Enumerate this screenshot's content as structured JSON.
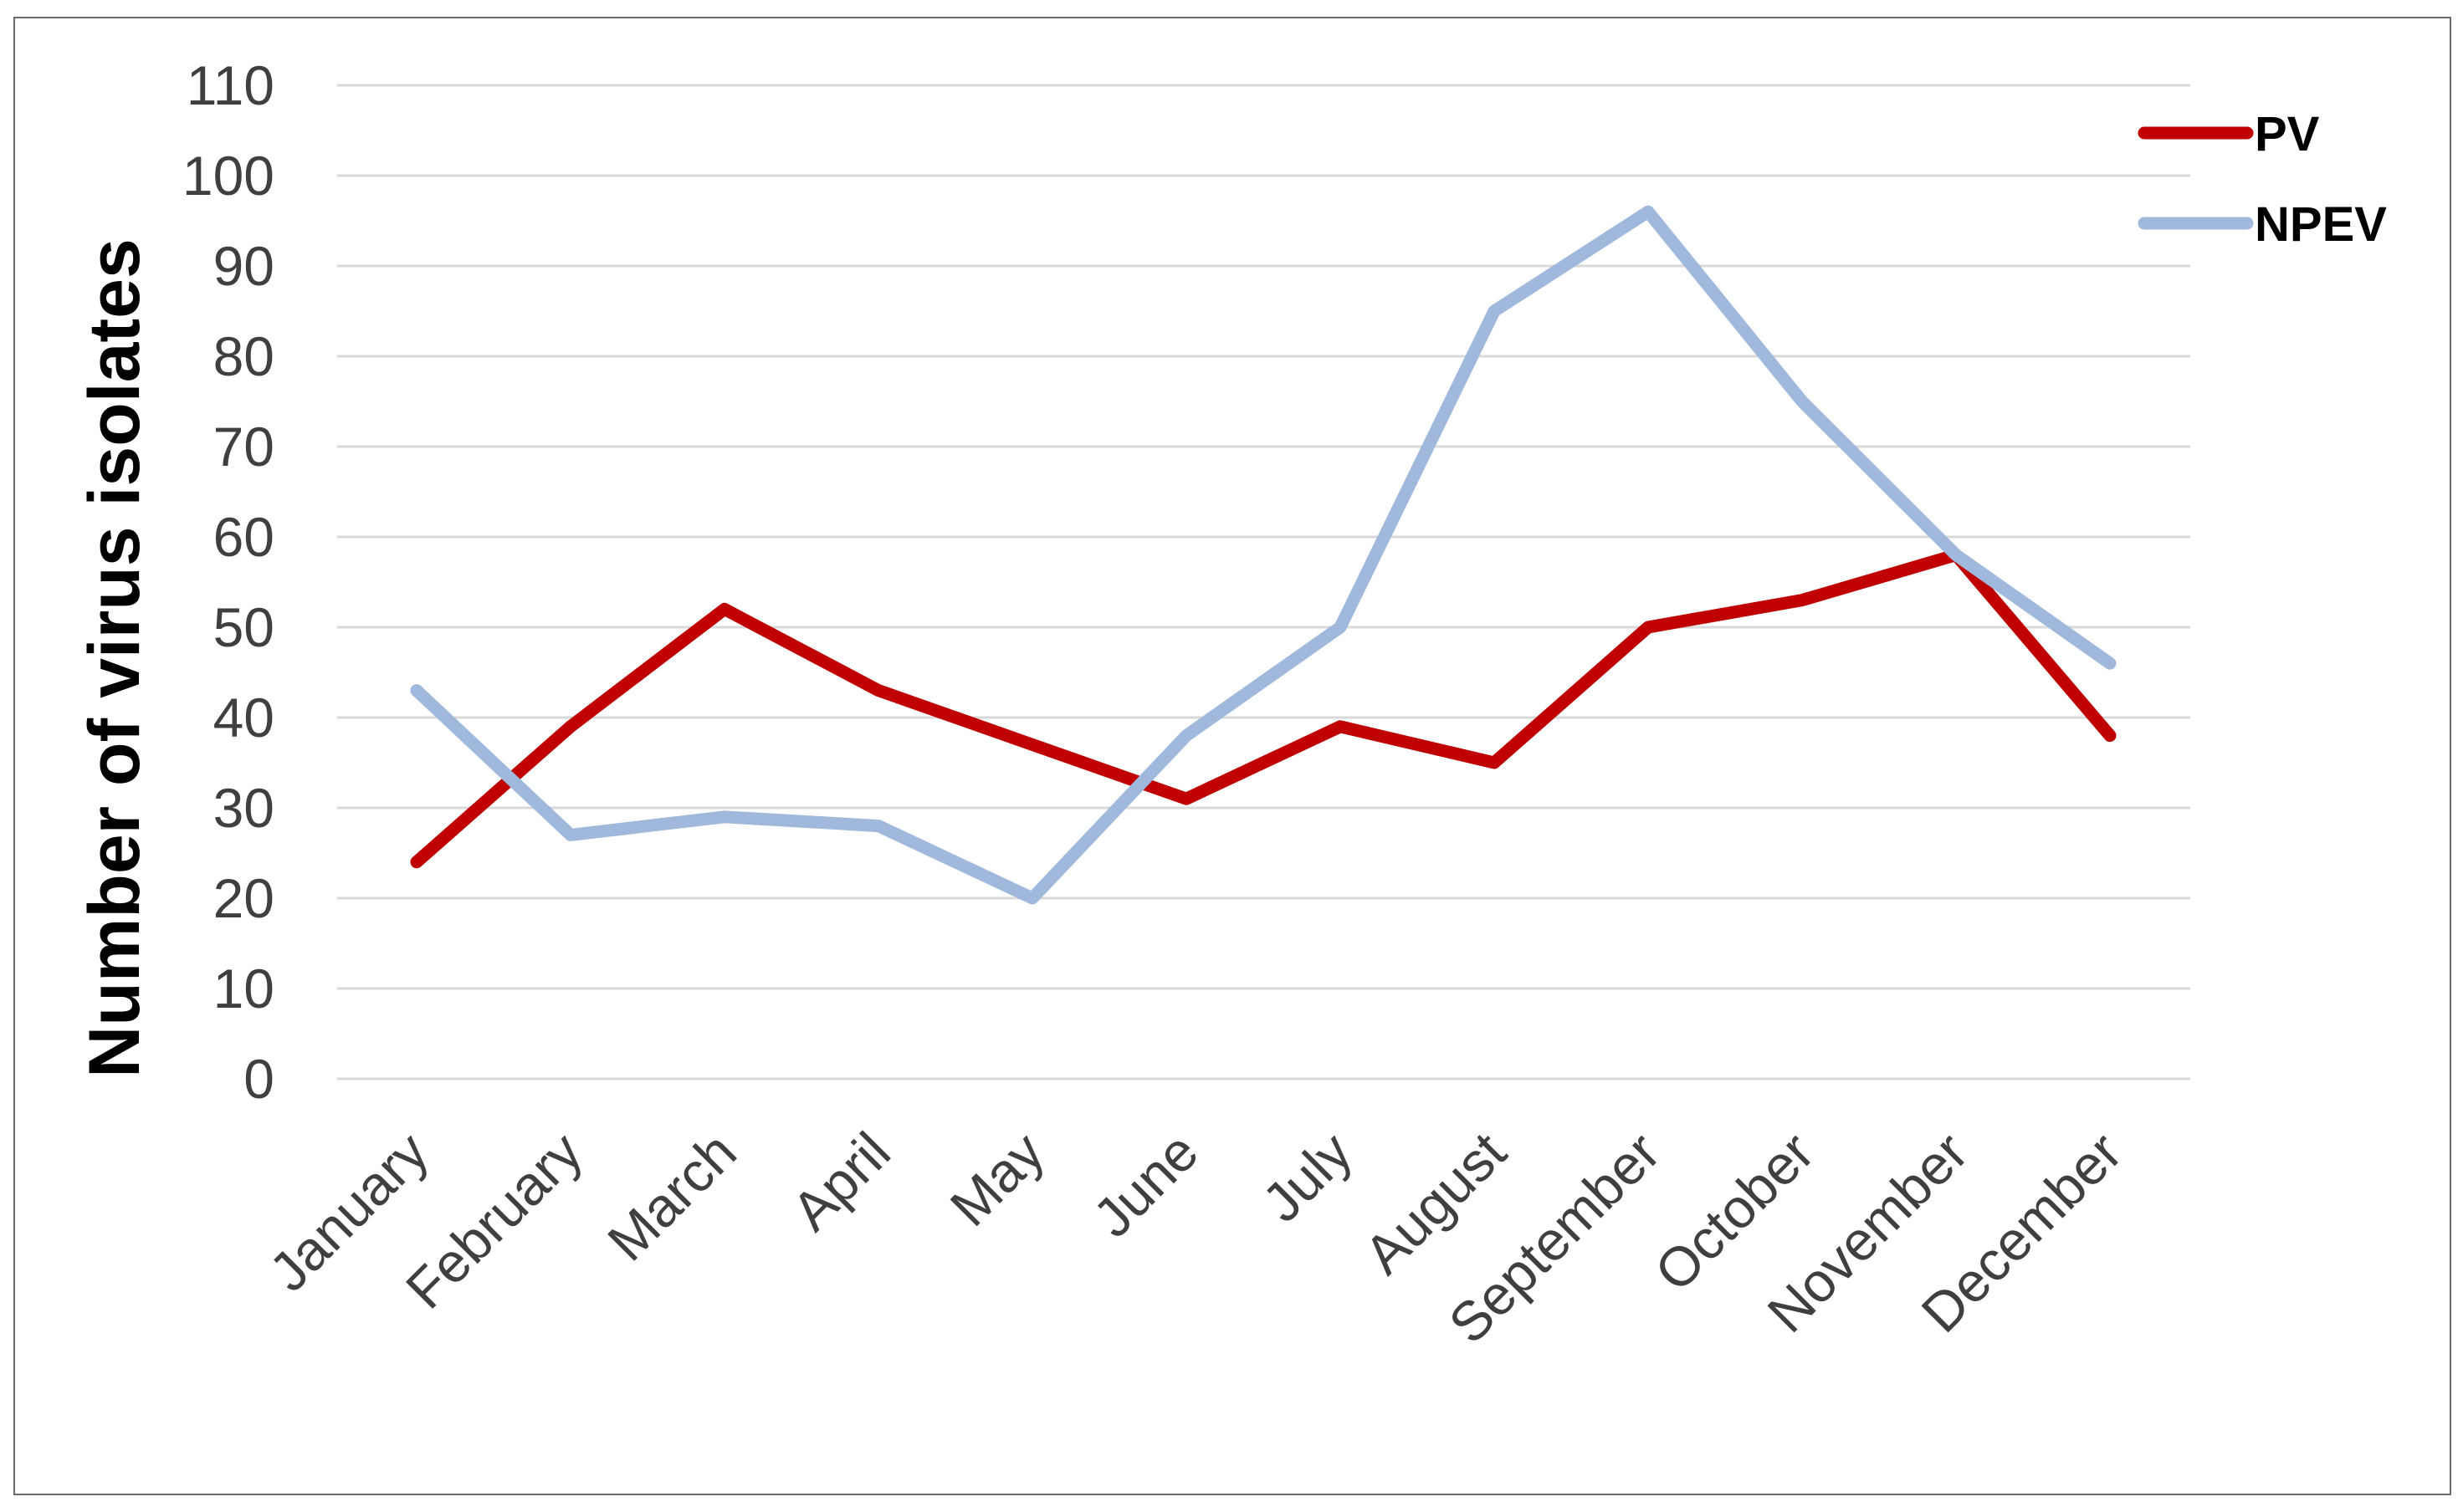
{
  "chart_data": {
    "type": "line",
    "title": "",
    "xlabel": "",
    "ylabel": "Number of virus isolates",
    "ylim": [
      0,
      110
    ],
    "yticks": [
      0,
      10,
      20,
      30,
      40,
      50,
      60,
      70,
      80,
      90,
      100,
      110
    ],
    "grid": true,
    "legend_position": "top-right",
    "categories": [
      "January",
      "February",
      "March",
      "April",
      "May",
      "June",
      "July",
      "August",
      "September",
      "October",
      "November",
      "December"
    ],
    "series": [
      {
        "name": "PV",
        "color": "#c00000",
        "values": [
          24,
          39,
          52,
          43,
          37,
          31,
          39,
          35,
          50,
          53,
          58,
          38
        ]
      },
      {
        "name": "NPEV",
        "color": "#9fb8dc",
        "values": [
          43,
          27,
          29,
          28,
          20,
          38,
          50,
          85,
          96,
          75,
          58,
          46
        ]
      }
    ]
  }
}
